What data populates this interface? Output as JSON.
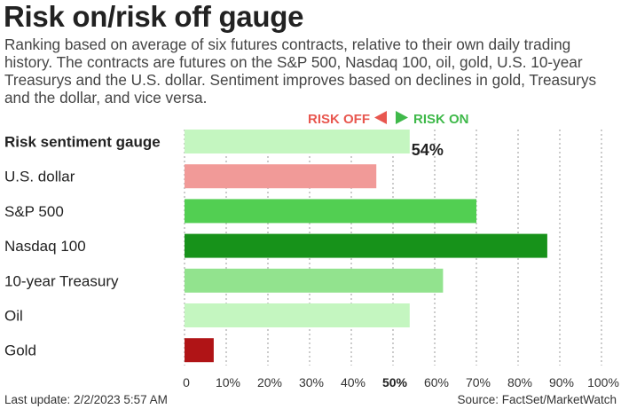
{
  "title": "Risk on/risk off gauge",
  "subtitle": "Ranking based on average of six futures contracts, relative to their own daily trading history. The contracts are futures on the S&P 500, Nasdaq 100, oil, gold, U.S. 10-year Treasurys and the U.S. dollar. Sentiment improves based on declines in gold, Treasurys and the dollar, and vice versa.",
  "legend": {
    "risk_off": "RISK OFF",
    "risk_on": "RISK ON",
    "risk_off_color": "#e8574f",
    "risk_on_color": "#3fb94a"
  },
  "footer": {
    "last_update": "Last update: 2/2/2023 5:57 AM",
    "source": "Source: FactSet/MarketWatch"
  },
  "chart_data": {
    "type": "bar",
    "orientation": "horizontal",
    "categories": [
      "Risk sentiment gauge",
      "U.S. dollar",
      "S&P 500",
      "Nasdaq 100",
      "10-year Treasury",
      "Oil",
      "Gold"
    ],
    "values": [
      54,
      46,
      70,
      87,
      62,
      54,
      7
    ],
    "colors": [
      "#c4f6c0",
      "#f19a98",
      "#52cf52",
      "#17921a",
      "#92e38e",
      "#c4f6c0",
      "#b01416"
    ],
    "value_labels": [
      "54%",
      "",
      "",
      "",
      "",
      "",
      ""
    ],
    "xlim": [
      0,
      100
    ],
    "x_ticks": [
      "0",
      "10%",
      "20%",
      "30%",
      "40%",
      "50%",
      "60%",
      "70%",
      "80%",
      "90%",
      "100%"
    ],
    "x_tick_values": [
      0,
      10,
      20,
      30,
      40,
      50,
      60,
      70,
      80,
      90,
      100
    ],
    "highlight_tick": "50%",
    "grid": "vertical dotted"
  }
}
